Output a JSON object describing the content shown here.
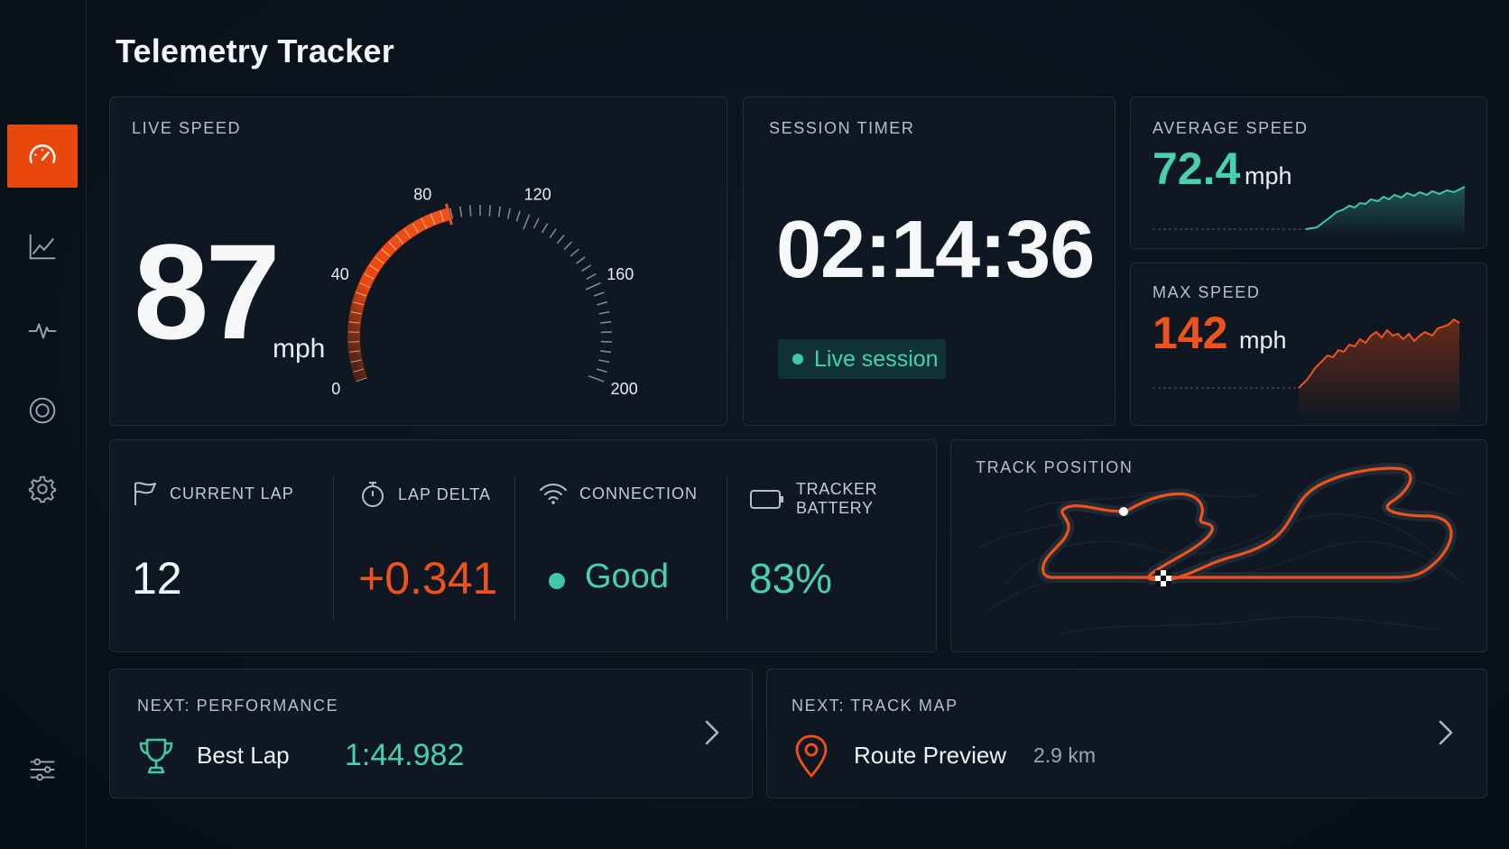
{
  "app": {
    "title": "Telemetry Tracker"
  },
  "sidebar": {
    "items": [
      {
        "icon": "speedometer-icon",
        "active": true
      },
      {
        "icon": "line-chart-icon",
        "active": false
      },
      {
        "icon": "pulse-icon",
        "active": false
      },
      {
        "icon": "target-icon",
        "active": false
      },
      {
        "icon": "gear-icon",
        "active": false
      }
    ],
    "bottom": {
      "icon": "sliders-icon"
    }
  },
  "live_speed": {
    "label": "LIVE SPEED",
    "value": "87",
    "unit": "mph",
    "gauge": {
      "min": 0,
      "max": 200,
      "value": 87,
      "ticks": [
        "0",
        "40",
        "80",
        "120",
        "160",
        "200"
      ]
    }
  },
  "session_timer": {
    "label": "SESSION TIMER",
    "value": "02:14:36",
    "status": "Live session"
  },
  "average_speed": {
    "label": "AVERAGE SPEED",
    "value": "72.4",
    "unit": "mph"
  },
  "max_speed": {
    "label": "MAX SPEED",
    "value": "142",
    "unit": "mph"
  },
  "stats": {
    "current_lap": {
      "label": "CURRENT LAP",
      "value": "12"
    },
    "lap_delta": {
      "label": "LAP DELTA",
      "value": "+0.341"
    },
    "connection": {
      "label": "CONNECTION",
      "value": "Good"
    },
    "battery": {
      "label": "TRACKER BATTERY",
      "value": "83%"
    }
  },
  "track": {
    "label": "TRACK POSITION"
  },
  "next_performance": {
    "label": "NEXT: PERFORMANCE",
    "name": "Best Lap",
    "value": "1:44.982"
  },
  "next_track_map": {
    "label": "NEXT: TRACK MAP",
    "name": "Route Preview",
    "value": "2.9 km"
  },
  "colors": {
    "accent": "#e8480e",
    "teal": "#3fc9a8",
    "orange": "#f0531a",
    "card": "#0f1822"
  }
}
